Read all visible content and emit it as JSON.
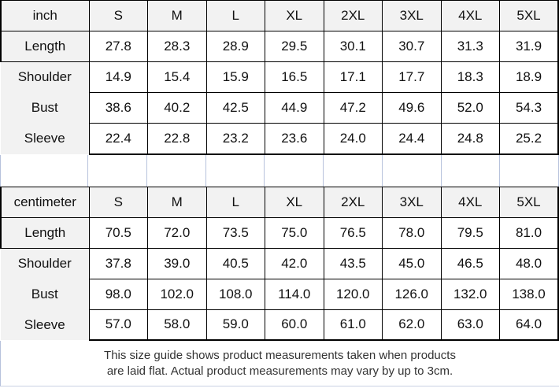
{
  "colors": {
    "header_bg": "#f2f2f2",
    "label_bg": "#f2f2f2",
    "cell_bg": "#ffffff",
    "table_border": "#000000",
    "spreadsheet_gridline": "#b7c2dc",
    "footer_text": "#333333"
  },
  "chart_data": [
    {
      "type": "table",
      "unit": "inch",
      "sizes": [
        "S",
        "M",
        "L",
        "XL",
        "2XL",
        "3XL",
        "4XL",
        "5XL"
      ],
      "rows": [
        {
          "label": "Length",
          "values": [
            "27.8",
            "28.3",
            "28.9",
            "29.5",
            "30.1",
            "30.7",
            "31.3",
            "31.9"
          ]
        },
        {
          "label": "Shoulder",
          "values": [
            "14.9",
            "15.4",
            "15.9",
            "16.5",
            "17.1",
            "17.7",
            "18.3",
            "18.9"
          ]
        },
        {
          "label": "Bust",
          "values": [
            "38.6",
            "40.2",
            "42.5",
            "44.9",
            "47.2",
            "49.6",
            "52.0",
            "54.3"
          ]
        },
        {
          "label": "Sleeve",
          "values": [
            "22.4",
            "22.8",
            "23.2",
            "23.6",
            "24.0",
            "24.4",
            "24.8",
            "25.2"
          ]
        }
      ]
    },
    {
      "type": "table",
      "unit": "centimeter",
      "sizes": [
        "S",
        "M",
        "L",
        "XL",
        "2XL",
        "3XL",
        "4XL",
        "5XL"
      ],
      "rows": [
        {
          "label": "Length",
          "values": [
            "70.5",
            "72.0",
            "73.5",
            "75.0",
            "76.5",
            "78.0",
            "79.5",
            "81.0"
          ]
        },
        {
          "label": "Shoulder",
          "values": [
            "37.8",
            "39.0",
            "40.5",
            "42.0",
            "43.5",
            "45.0",
            "46.5",
            "48.0"
          ]
        },
        {
          "label": "Bust",
          "values": [
            "98.0",
            "102.0",
            "108.0",
            "114.0",
            "120.0",
            "126.0",
            "132.0",
            "138.0"
          ]
        },
        {
          "label": "Sleeve",
          "values": [
            "57.0",
            "58.0",
            "59.0",
            "60.0",
            "61.0",
            "62.0",
            "63.0",
            "64.0"
          ]
        }
      ]
    }
  ],
  "footer": {
    "lines": [
      "This size guide shows product measurements taken when products",
      "are laid flat. Actual product measurements may vary by up to 3cm."
    ]
  }
}
